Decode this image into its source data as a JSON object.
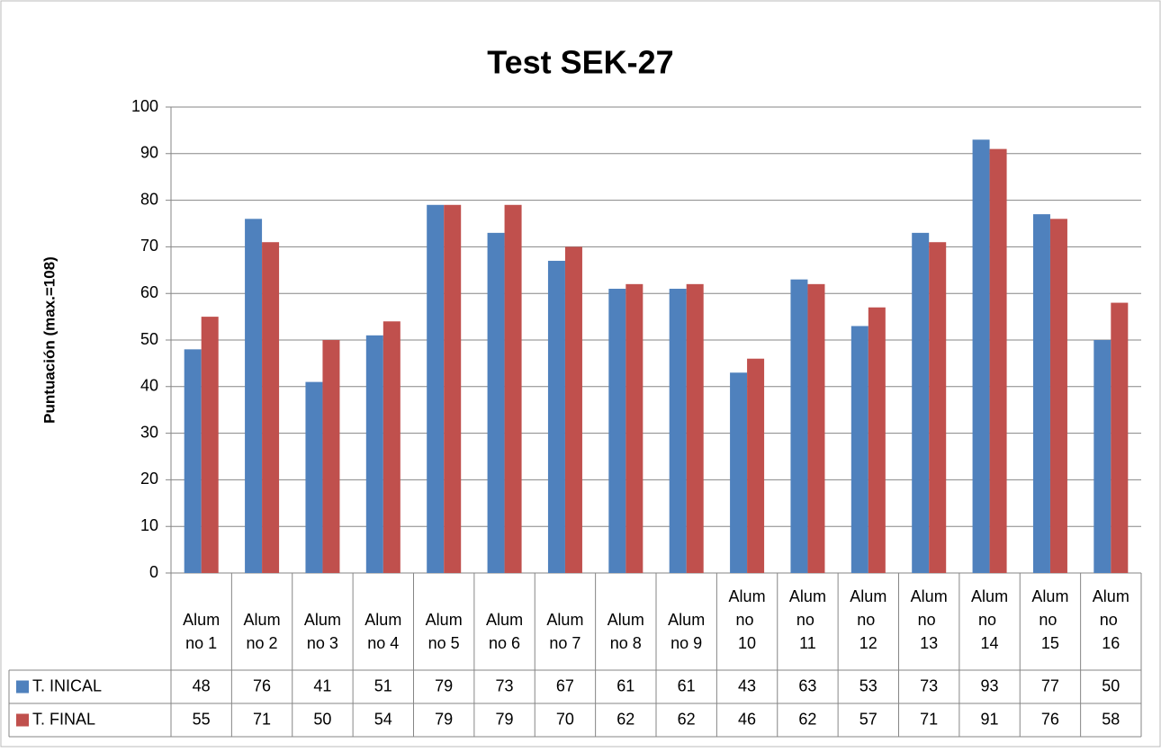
{
  "chart_data": {
    "type": "bar",
    "title": "Test SEK-27",
    "y_label": "Puntuación (max.=108)",
    "categories": [
      "Alumno 1",
      "Alumno 2",
      "Alumno 3",
      "Alumno 4",
      "Alumno 5",
      "Alumno 6",
      "Alumno 7",
      "Alumno 8",
      "Alumno 9",
      "Alumno 10",
      "Alumno 11",
      "Alumno 12",
      "Alumno 13",
      "Alumno 14",
      "Alumno 15",
      "Alumno 16"
    ],
    "series": [
      {
        "name": "T. INICAL",
        "color": "#4f81bd",
        "values": [
          48,
          76,
          41,
          51,
          79,
          73,
          67,
          61,
          61,
          43,
          63,
          53,
          73,
          93,
          77,
          50
        ]
      },
      {
        "name": "T. FINAL",
        "color": "#c0504d",
        "values": [
          55,
          71,
          50,
          54,
          79,
          79,
          70,
          62,
          62,
          46,
          62,
          57,
          71,
          91,
          76,
          58
        ]
      }
    ],
    "ylim": [
      0,
      100
    ],
    "yticks": [
      0,
      10,
      20,
      30,
      40,
      50,
      60,
      70,
      80,
      90,
      100
    ],
    "grid": true
  }
}
